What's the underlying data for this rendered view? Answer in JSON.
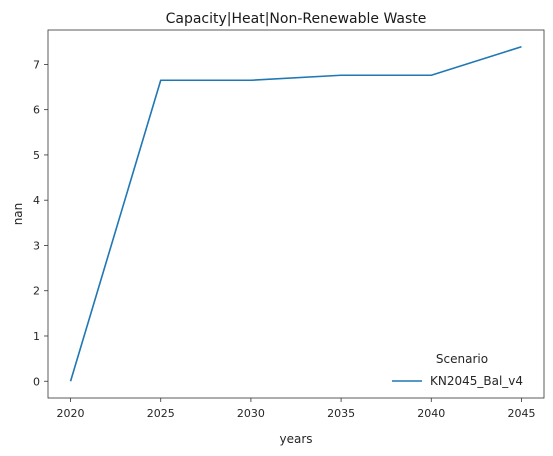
{
  "chart_data": {
    "type": "line",
    "title": "Capacity|Heat|Non-Renewable Waste",
    "xlabel": "years",
    "ylabel": "nan",
    "x": [
      2020,
      2025,
      2030,
      2035,
      2040,
      2045
    ],
    "xticks": [
      "2020",
      "2025",
      "2030",
      "2035",
      "2040",
      "2045"
    ],
    "yticks": [
      "0",
      "1",
      "2",
      "3",
      "4",
      "5",
      "6",
      "7"
    ],
    "xlim": [
      2018.75,
      2046.25
    ],
    "ylim": [
      -0.37,
      7.76
    ],
    "grid": false,
    "legend": {
      "title": "Scenario",
      "placement": "lower-right"
    },
    "series": [
      {
        "name": "KN2045_Bal_v4",
        "color": "#1f77b4",
        "values": [
          0,
          6.65,
          6.65,
          6.76,
          6.76,
          7.39
        ]
      }
    ]
  }
}
